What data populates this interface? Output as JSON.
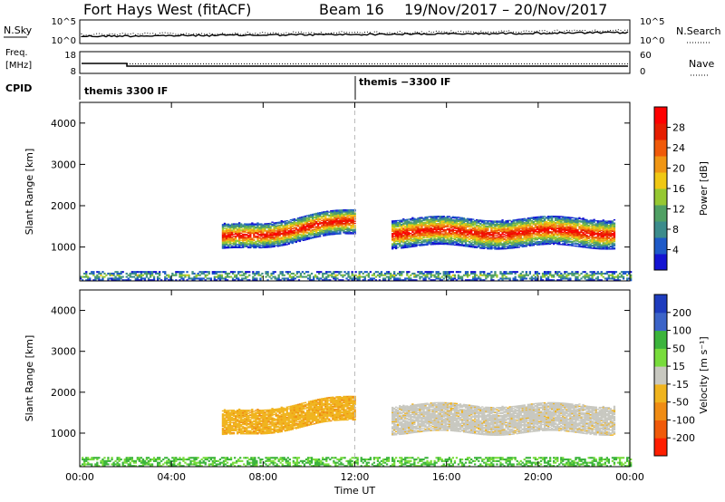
{
  "header": {
    "station": "Fort Hays West (fitACF)",
    "beam": "Beam 16",
    "dates": "19/Nov/2017 – 20/Nov/2017"
  },
  "top_panels": {
    "noise": {
      "left_label": "N.Sky",
      "left_ticks": [
        "10^5",
        "10^0"
      ],
      "right_ticks": [
        "10^5",
        "10^0"
      ],
      "right_label": "N.Search"
    },
    "freq": {
      "left_label_1": "Freq.",
      "left_label_2": "[MHz]",
      "left_ticks": [
        "18",
        "8"
      ],
      "right_ticks": [
        "60",
        "0"
      ],
      "right_label": "Nave"
    },
    "cpid": {
      "label": "CPID",
      "segments": [
        "themis 3300 IF",
        "themis −3300 IF"
      ]
    }
  },
  "chart_data": [
    {
      "type": "heatmap",
      "title": "",
      "xlabel": "",
      "ylabel": "Slant Range [km]",
      "x_ticks": [
        "00:00",
        "04:00",
        "08:00",
        "12:00",
        "16:00",
        "20:00",
        "00:00"
      ],
      "y_ticks": [
        1000,
        2000,
        3000,
        4000
      ],
      "ylim": [
        180,
        4500
      ],
      "xlim_hours": [
        0,
        24
      ],
      "colorbar": {
        "label": "Power [dB]",
        "ticks": [
          4,
          8,
          12,
          16,
          20,
          24,
          28
        ],
        "colors": [
          "#1414d2",
          "#1e5ac8",
          "#3c8c8c",
          "#50a064",
          "#96c832",
          "#f0c814",
          "#f09614",
          "#f05a0a",
          "#e61e00",
          "#ff0000"
        ]
      },
      "regions": [
        {
          "feature": "echo band",
          "start_h": 6.2,
          "end_h": 12.0,
          "range_km": [
            900,
            1500
          ],
          "level_db": 24
        },
        {
          "feature": "echo band",
          "start_h": 13.6,
          "end_h": 23.3,
          "range_km": [
            1000,
            1700
          ],
          "level_db": 22
        },
        {
          "feature": "near range scatter",
          "start_h": 0,
          "end_h": 24,
          "range_km": [
            180,
            400
          ],
          "level_db": 8
        }
      ]
    },
    {
      "type": "heatmap",
      "title": "",
      "xlabel": "Time UT",
      "ylabel": "Slant Range [km]",
      "x_ticks": [
        "00:00",
        "04:00",
        "08:00",
        "12:00",
        "16:00",
        "20:00",
        "00:00"
      ],
      "y_ticks": [
        1000,
        2000,
        3000,
        4000
      ],
      "ylim": [
        180,
        4500
      ],
      "xlim_hours": [
        0,
        24
      ],
      "colorbar": {
        "label": "Velocity [m s⁻¹]",
        "ticks": [
          200,
          100,
          50,
          15,
          -15,
          -50,
          -100,
          -200
        ],
        "colors": [
          "#1e3cbe",
          "#3c64c8",
          "#3cb43c",
          "#78dc3c",
          "#c8c8c0",
          "#f0b41e",
          "#f08c14",
          "#f05a0a",
          "#ff1e00"
        ]
      },
      "regions": [
        {
          "feature": "echo band",
          "start_h": 6.2,
          "end_h": 12.0,
          "range_km": [
            900,
            1500
          ],
          "velocity": -40
        },
        {
          "feature": "echo band",
          "start_h": 13.6,
          "end_h": 23.3,
          "range_km": [
            1000,
            1700
          ],
          "velocity": 0
        },
        {
          "feature": "near range scatter",
          "start_h": 0,
          "end_h": 24,
          "range_km": [
            180,
            400
          ],
          "velocity": 20
        }
      ]
    }
  ]
}
